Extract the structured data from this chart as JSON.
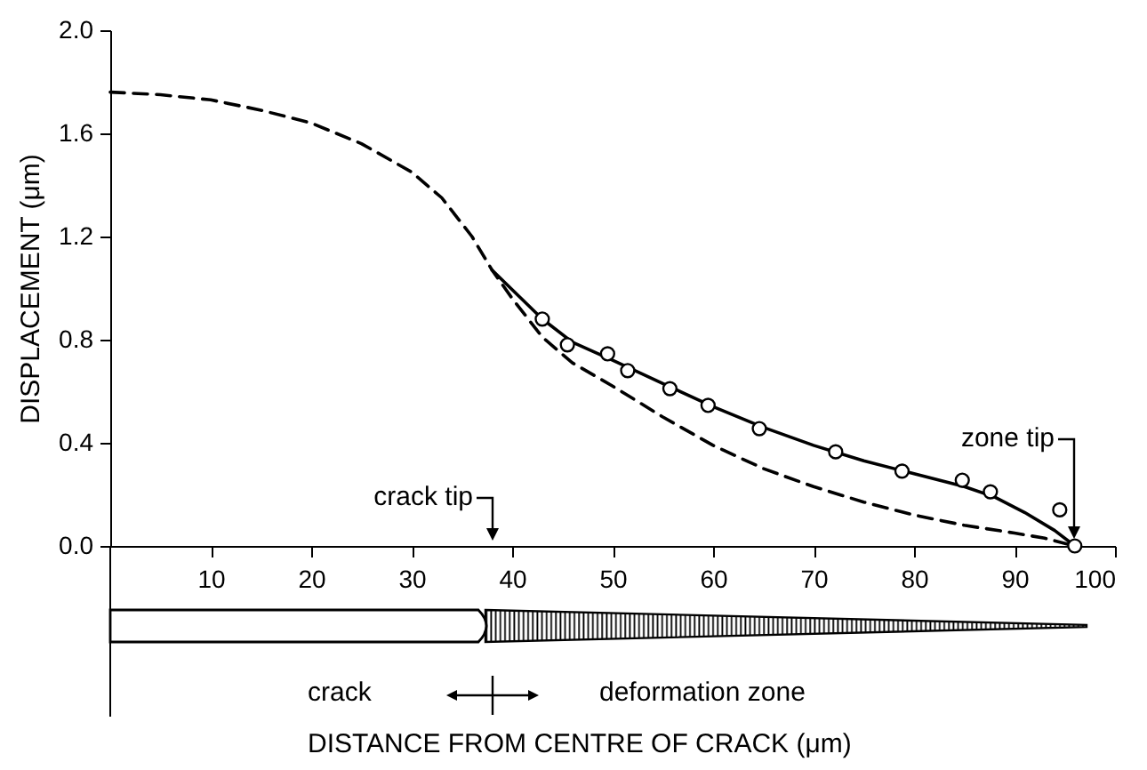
{
  "chart_data": {
    "type": "line",
    "ylabel": "DISPLACEMENT (μm)",
    "xlim": [
      0,
      100
    ],
    "xticks": [
      10,
      20,
      30,
      40,
      50,
      60,
      70,
      80,
      90,
      100
    ],
    "ylim": [
      0,
      2
    ],
    "yticks": [
      {
        "value": 0,
        "label": "0.0"
      },
      0.4,
      0.8,
      1.2,
      1.6,
      {
        "value": 2,
        "label": "2.0"
      }
    ],
    "grid": false,
    "series": [
      {
        "line_style": "dashed",
        "marker": "none",
        "color": "#000000",
        "x": [
          0,
          5,
          10,
          15,
          20,
          25,
          30,
          33,
          36,
          38,
          40,
          43,
          46,
          50,
          55,
          60,
          65,
          70,
          75,
          80,
          85,
          90,
          93,
          96
        ],
        "values": [
          1.76,
          1.75,
          1.73,
          1.69,
          1.64,
          1.56,
          1.45,
          1.35,
          1.2,
          1.07,
          0.96,
          0.81,
          0.71,
          0.62,
          0.5,
          0.39,
          0.3,
          0.23,
          0.17,
          0.12,
          0.08,
          0.05,
          0.03,
          0
        ]
      },
      {
        "line_style": "solid",
        "marker": "none",
        "color": "#000000",
        "x": [
          38,
          43,
          46,
          50,
          55,
          60,
          65,
          70,
          75,
          80,
          85,
          88,
          91,
          94,
          96
        ],
        "values": [
          1.07,
          0.88,
          0.79,
          0.72,
          0.63,
          0.54,
          0.46,
          0.39,
          0.33,
          0.28,
          0.23,
          0.19,
          0.13,
          0.06,
          0
        ]
      },
      {
        "type": "scatter",
        "marker": "circle",
        "color": "#000000",
        "x": [
          43,
          45.5,
          49.5,
          51.5,
          55.7,
          59.5,
          64.6,
          72.2,
          78.8,
          84.8,
          87.6,
          94.5,
          96
        ],
        "values": [
          0.88,
          0.78,
          0.745,
          0.68,
          0.61,
          0.545,
          0.455,
          0.365,
          0.29,
          0.255,
          0.21,
          0.14,
          0
        ]
      }
    ],
    "annotations": [
      "crack tip",
      "zone tip",
      "crack",
      "deformation zone",
      "DISTANCE FROM CENTRE OF CRACK (μm)"
    ]
  }
}
